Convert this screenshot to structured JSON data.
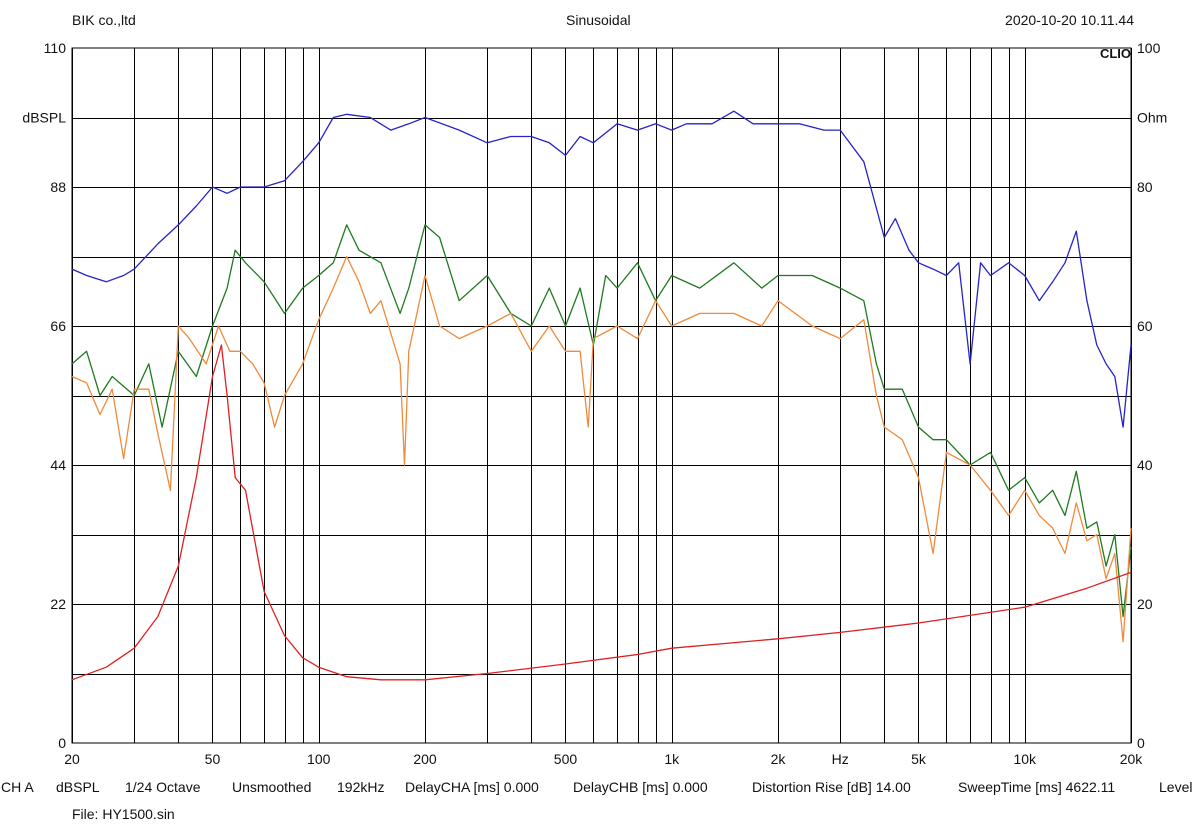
{
  "header": {
    "company": "BIK co.,ltd",
    "title": "Sinusoidal",
    "timestamp": "2020-10-20 10.11.44",
    "brand": "CLIO"
  },
  "footer": {
    "items": [
      "CH A",
      "dBSPL",
      "1/24 Octave",
      "Unsmoothed",
      "192kHz",
      "DelayCHA [ms] 0.000",
      "DelayCHB [ms] 0.000",
      "Distortion Rise [dB] 14.00",
      "SweepTime [ms] 4622.11",
      "Level"
    ],
    "file": "File: HY1500.sin"
  },
  "chart_data": {
    "type": "line",
    "xscale": "log",
    "xlim": [
      20,
      20000
    ],
    "x_tick_labels": [
      {
        "x": 20,
        "label": "20"
      },
      {
        "x": 50,
        "label": "50"
      },
      {
        "x": 100,
        "label": "100"
      },
      {
        "x": 200,
        "label": "200"
      },
      {
        "x": 500,
        "label": "500"
      },
      {
        "x": 1000,
        "label": "1k"
      },
      {
        "x": 2000,
        "label": "2k"
      },
      {
        "x": 3000,
        "label": "Hz"
      },
      {
        "x": 5000,
        "label": "5k"
      },
      {
        "x": 10000,
        "label": "10k"
      },
      {
        "x": 20000,
        "label": "20k"
      }
    ],
    "y_left": {
      "label": "dBSPL",
      "ylim": [
        0,
        110
      ],
      "ticks": [
        0,
        22,
        44,
        66,
        88,
        110
      ]
    },
    "y_right": {
      "label": "Ohm",
      "ylim": [
        0,
        100
      ],
      "ticks": [
        0,
        20,
        40,
        60,
        80,
        100
      ]
    },
    "grid": true,
    "colors": {
      "grid": "#000000",
      "blue": "#2424c8",
      "green": "#1f7a1f",
      "orange": "#f08a3c",
      "red": "#e02020"
    },
    "series": [
      {
        "color": "blue",
        "axis": "left",
        "points": [
          [
            20,
            75
          ],
          [
            22,
            74
          ],
          [
            25,
            73
          ],
          [
            28,
            74
          ],
          [
            30,
            75
          ],
          [
            35,
            79
          ],
          [
            40,
            82
          ],
          [
            45,
            85
          ],
          [
            50,
            88
          ],
          [
            55,
            87
          ],
          [
            60,
            88
          ],
          [
            70,
            88
          ],
          [
            80,
            89
          ],
          [
            90,
            92
          ],
          [
            100,
            95
          ],
          [
            110,
            99
          ],
          [
            120,
            99.5
          ],
          [
            140,
            99
          ],
          [
            160,
            97
          ],
          [
            180,
            98
          ],
          [
            200,
            99
          ],
          [
            250,
            97
          ],
          [
            300,
            95
          ],
          [
            350,
            96
          ],
          [
            400,
            96
          ],
          [
            450,
            95
          ],
          [
            500,
            93
          ],
          [
            550,
            96
          ],
          [
            600,
            95
          ],
          [
            700,
            98
          ],
          [
            800,
            97
          ],
          [
            900,
            98
          ],
          [
            1000,
            97
          ],
          [
            1100,
            98
          ],
          [
            1300,
            98
          ],
          [
            1500,
            100
          ],
          [
            1700,
            98
          ],
          [
            2000,
            98
          ],
          [
            2300,
            98
          ],
          [
            2700,
            97
          ],
          [
            3000,
            97
          ],
          [
            3500,
            92
          ],
          [
            4000,
            80
          ],
          [
            4300,
            83
          ],
          [
            4700,
            78
          ],
          [
            5000,
            76
          ],
          [
            5500,
            75
          ],
          [
            6000,
            74
          ],
          [
            6500,
            76
          ],
          [
            7000,
            60
          ],
          [
            7500,
            76
          ],
          [
            8000,
            74
          ],
          [
            9000,
            76
          ],
          [
            10000,
            74
          ],
          [
            11000,
            70
          ],
          [
            12000,
            73
          ],
          [
            13000,
            76
          ],
          [
            14000,
            81
          ],
          [
            15000,
            70
          ],
          [
            16000,
            63
          ],
          [
            17000,
            60
          ],
          [
            18000,
            58
          ],
          [
            19000,
            50
          ],
          [
            20000,
            63
          ]
        ]
      },
      {
        "color": "green",
        "axis": "left",
        "points": [
          [
            20,
            60
          ],
          [
            22,
            62
          ],
          [
            24,
            55
          ],
          [
            26,
            58
          ],
          [
            30,
            55
          ],
          [
            33,
            60
          ],
          [
            36,
            50
          ],
          [
            40,
            62
          ],
          [
            45,
            58
          ],
          [
            50,
            66
          ],
          [
            55,
            72
          ],
          [
            58,
            78
          ],
          [
            62,
            76
          ],
          [
            70,
            73
          ],
          [
            80,
            68
          ],
          [
            90,
            72
          ],
          [
            100,
            74
          ],
          [
            110,
            76
          ],
          [
            120,
            82
          ],
          [
            130,
            78
          ],
          [
            150,
            76
          ],
          [
            170,
            68
          ],
          [
            180,
            72
          ],
          [
            200,
            82
          ],
          [
            220,
            80
          ],
          [
            250,
            70
          ],
          [
            300,
            74
          ],
          [
            350,
            68
          ],
          [
            400,
            66
          ],
          [
            450,
            72
          ],
          [
            500,
            66
          ],
          [
            550,
            72
          ],
          [
            600,
            63
          ],
          [
            650,
            74
          ],
          [
            700,
            72
          ],
          [
            800,
            76
          ],
          [
            900,
            70
          ],
          [
            1000,
            74
          ],
          [
            1200,
            72
          ],
          [
            1500,
            76
          ],
          [
            1800,
            72
          ],
          [
            2000,
            74
          ],
          [
            2500,
            74
          ],
          [
            3000,
            72
          ],
          [
            3500,
            70
          ],
          [
            3800,
            60
          ],
          [
            4000,
            56
          ],
          [
            4500,
            56
          ],
          [
            5000,
            50
          ],
          [
            5500,
            48
          ],
          [
            6000,
            48
          ],
          [
            7000,
            44
          ],
          [
            8000,
            46
          ],
          [
            9000,
            40
          ],
          [
            10000,
            42
          ],
          [
            11000,
            38
          ],
          [
            12000,
            40
          ],
          [
            13000,
            36
          ],
          [
            14000,
            43
          ],
          [
            15000,
            34
          ],
          [
            16000,
            35
          ],
          [
            17000,
            28
          ],
          [
            18000,
            33
          ],
          [
            19000,
            20
          ],
          [
            20000,
            31
          ]
        ]
      },
      {
        "color": "orange",
        "axis": "left",
        "points": [
          [
            20,
            58
          ],
          [
            22,
            57
          ],
          [
            24,
            52
          ],
          [
            26,
            56
          ],
          [
            28,
            45
          ],
          [
            30,
            56
          ],
          [
            33,
            56
          ],
          [
            35,
            49
          ],
          [
            38,
            40
          ],
          [
            40,
            66
          ],
          [
            43,
            64
          ],
          [
            48,
            60
          ],
          [
            52,
            66
          ],
          [
            56,
            62
          ],
          [
            60,
            62
          ],
          [
            65,
            60
          ],
          [
            70,
            57
          ],
          [
            75,
            50
          ],
          [
            80,
            55
          ],
          [
            90,
            60
          ],
          [
            100,
            67
          ],
          [
            110,
            72
          ],
          [
            120,
            77
          ],
          [
            130,
            73
          ],
          [
            140,
            68
          ],
          [
            150,
            70
          ],
          [
            170,
            60
          ],
          [
            175,
            44
          ],
          [
            180,
            62
          ],
          [
            200,
            74
          ],
          [
            220,
            66
          ],
          [
            250,
            64
          ],
          [
            300,
            66
          ],
          [
            350,
            68
          ],
          [
            400,
            62
          ],
          [
            450,
            66
          ],
          [
            500,
            62
          ],
          [
            550,
            62
          ],
          [
            580,
            50
          ],
          [
            600,
            64
          ],
          [
            700,
            66
          ],
          [
            800,
            64
          ],
          [
            900,
            70
          ],
          [
            1000,
            66
          ],
          [
            1200,
            68
          ],
          [
            1500,
            68
          ],
          [
            1800,
            66
          ],
          [
            2000,
            70
          ],
          [
            2500,
            66
          ],
          [
            3000,
            64
          ],
          [
            3500,
            67
          ],
          [
            3800,
            55
          ],
          [
            4000,
            50
          ],
          [
            4500,
            48
          ],
          [
            5000,
            42
          ],
          [
            5500,
            30
          ],
          [
            6000,
            46
          ],
          [
            7000,
            44
          ],
          [
            8000,
            40
          ],
          [
            9000,
            36
          ],
          [
            10000,
            40
          ],
          [
            11000,
            36
          ],
          [
            12000,
            34
          ],
          [
            13000,
            30
          ],
          [
            14000,
            38
          ],
          [
            15000,
            32
          ],
          [
            16000,
            33
          ],
          [
            17000,
            26
          ],
          [
            18000,
            30
          ],
          [
            19000,
            16
          ],
          [
            20000,
            34
          ]
        ]
      },
      {
        "color": "red",
        "axis": "left",
        "points": [
          [
            20,
            10
          ],
          [
            25,
            12
          ],
          [
            30,
            15
          ],
          [
            35,
            20
          ],
          [
            40,
            28
          ],
          [
            45,
            42
          ],
          [
            50,
            58
          ],
          [
            53,
            63
          ],
          [
            55,
            55
          ],
          [
            58,
            42
          ],
          [
            62,
            40
          ],
          [
            70,
            24
          ],
          [
            80,
            17
          ],
          [
            90,
            13.5
          ],
          [
            100,
            12
          ],
          [
            120,
            10.5
          ],
          [
            150,
            10
          ],
          [
            200,
            10
          ],
          [
            300,
            11
          ],
          [
            500,
            12.5
          ],
          [
            800,
            14
          ],
          [
            1000,
            15
          ],
          [
            2000,
            16.5
          ],
          [
            3000,
            17.5
          ],
          [
            5000,
            19
          ],
          [
            10000,
            21.5
          ],
          [
            15000,
            24.5
          ],
          [
            20000,
            27
          ]
        ]
      }
    ]
  }
}
